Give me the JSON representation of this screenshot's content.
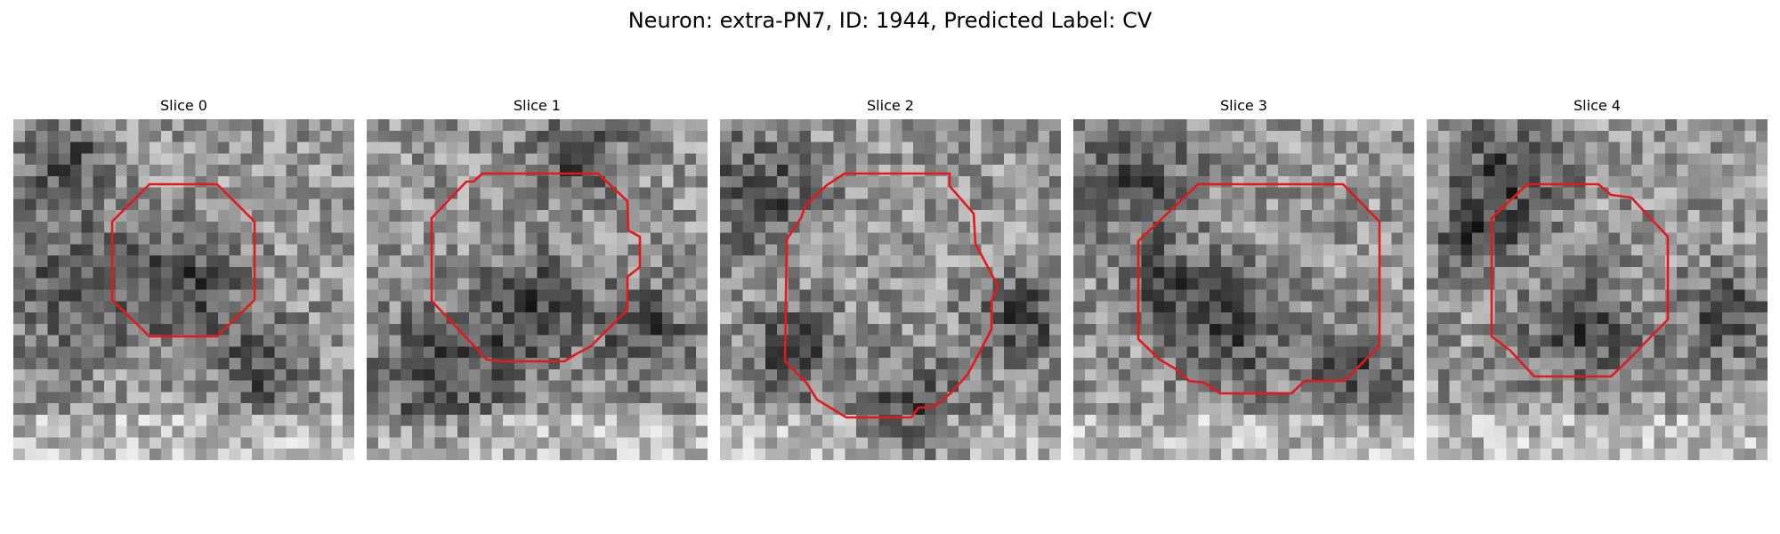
{
  "figure": {
    "title": "Neuron: extra-PN7, ID: 1944, Predicted Label: CV"
  },
  "slices": [
    {
      "label": "Slice 0"
    },
    {
      "label": "Slice 1"
    },
    {
      "label": "Slice 2"
    },
    {
      "label": "Slice 3"
    },
    {
      "label": "Slice 4"
    }
  ],
  "colors": {
    "contour": "#e31a1c",
    "colormap": "grayscale"
  }
}
